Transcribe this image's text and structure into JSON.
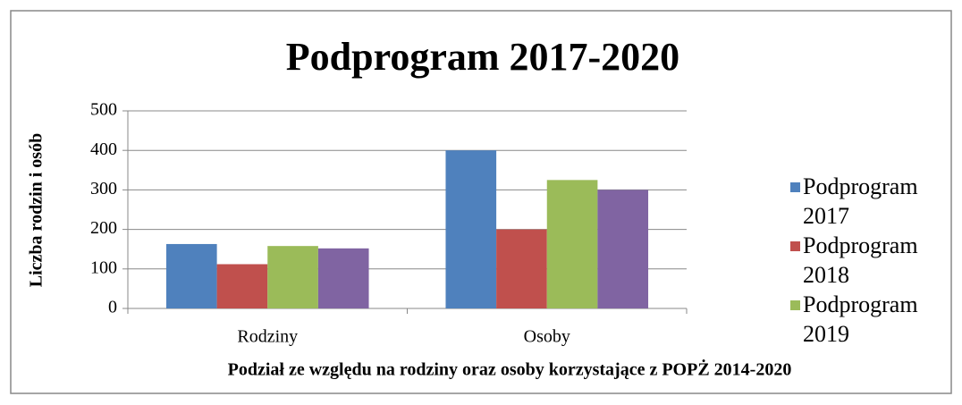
{
  "chart_data": {
    "type": "bar",
    "title": "Podprogram 2017-2020",
    "y_label": "Liczba rodzin i osób",
    "x_label": "Podział ze względu na rodziny oraz osoby korzystające z POPŻ 2014-2020",
    "categories": [
      "Rodziny",
      "Osoby"
    ],
    "series": [
      {
        "name": "Podprogram 2017",
        "color": "#4f81bd",
        "values": [
          163,
          400
        ]
      },
      {
        "name": "Podprogram 2018",
        "color": "#c0504d",
        "values": [
          112,
          200
        ]
      },
      {
        "name": "Podprogram 2019",
        "color": "#9bbb59",
        "values": [
          158,
          325
        ]
      },
      {
        "name": null,
        "color": "#8064a2",
        "values": [
          152,
          300
        ]
      }
    ],
    "ylim": [
      0,
      500
    ],
    "yticks": [
      0,
      100,
      200,
      300,
      400,
      500
    ],
    "grid": true,
    "legend": "right"
  }
}
